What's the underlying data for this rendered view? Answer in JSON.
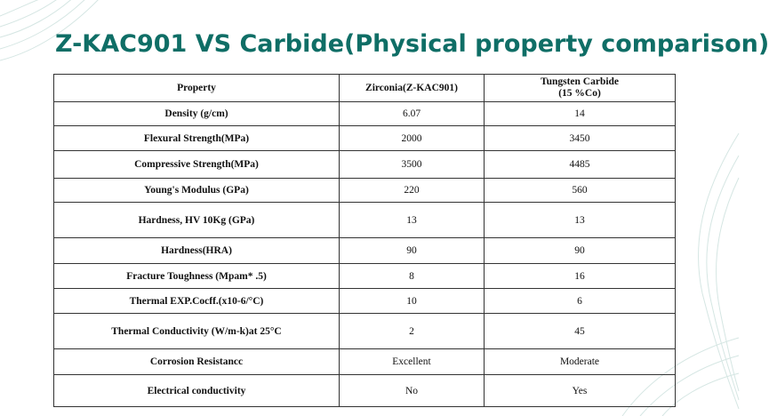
{
  "title": "Z-KAC901 VS Carbide(Physical property comparison)",
  "headers": {
    "property": "Property",
    "zirconia": "Zirconia(Z-KAC901)",
    "carbide_line1": "Tungsten Carbide",
    "carbide_line2": "(15 %Co)"
  },
  "rows": [
    {
      "property": "Density (g/cm)",
      "zirconia": "6.07",
      "carbide": "14"
    },
    {
      "property": "Flexural  Strength(MPa)",
      "zirconia": "2000",
      "carbide": "3450"
    },
    {
      "property": "Compressive Strength(MPa)",
      "zirconia": "3500",
      "carbide": "4485"
    },
    {
      "property": "Young's Modulus (GPa)",
      "zirconia": "220",
      "carbide": "560"
    },
    {
      "property": "Hardness, HV 10Kg (GPa)",
      "zirconia": "13",
      "carbide": "13"
    },
    {
      "property": "Hardness(HRA)",
      "zirconia": "90",
      "carbide": "90"
    },
    {
      "property": "Fracture Toughness (Mpam* .5)",
      "zirconia": "8",
      "carbide": "16"
    },
    {
      "property": "Thermal  EXP.Cocff.(x10-6/°C)",
      "zirconia": "10",
      "carbide": "6"
    },
    {
      "property": "Thermal Conductivity (W/m-k)at 25°C",
      "zirconia": "2",
      "carbide": "45"
    },
    {
      "property": "Corrosion Resistancc",
      "zirconia": "Excellent",
      "carbide": "Moderate"
    },
    {
      "property": "Electrical conductivity",
      "zirconia": "No",
      "carbide": "Yes"
    }
  ],
  "colors": {
    "title": "#0f6e66",
    "decoration": "#d5e6e3"
  }
}
